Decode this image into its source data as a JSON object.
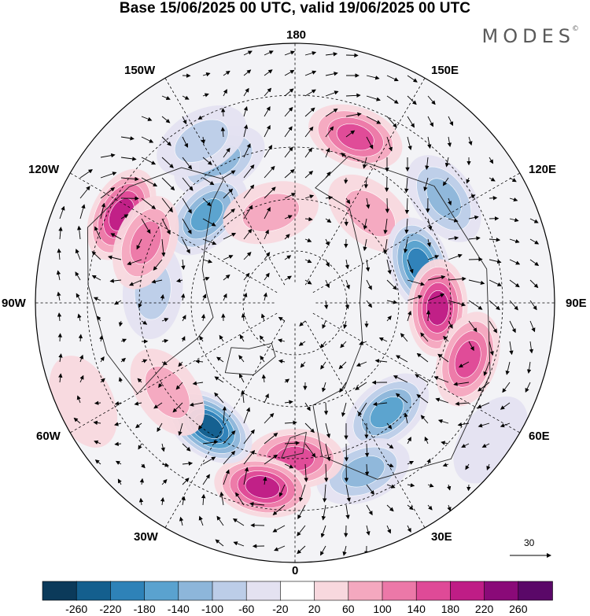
{
  "title": "Base 15/06/2025 00 UTC, valid 19/06/2025 00 UTC",
  "logo": "MODES",
  "logo_mark": "©",
  "longitude_labels": {
    "top": "180",
    "upper_left": "150W",
    "upper_right": "150E",
    "mid_upper_left": "120W",
    "mid_upper_right": "120E",
    "left": "90W",
    "right": "90E",
    "mid_lower_left": "60W",
    "mid_lower_right": "60E",
    "lower_left": "30W",
    "lower_right": "30E",
    "bottom": "0"
  },
  "reference_vector": "30",
  "colorbar": {
    "labels": [
      "-260",
      "-220",
      "-180",
      "-140",
      "-100",
      "-60",
      "-20",
      "20",
      "60",
      "100",
      "140",
      "180",
      "220",
      "260"
    ],
    "colors": [
      "#0b3a5a",
      "#145f8e",
      "#2e82b8",
      "#5aa2cf",
      "#8db6da",
      "#bccde8",
      "#e4e2f1",
      "#ffffff",
      "#f8d8de",
      "#f4a8bf",
      "#ec78a8",
      "#df4a97",
      "#bf1d86",
      "#8a0a78",
      "#5a0868"
    ]
  },
  "anomalies": [
    {
      "lon": -152,
      "r": 0.62,
      "v": -100
    },
    {
      "lon": -150,
      "r": 0.72,
      "v": -60
    },
    {
      "lon": -135,
      "r": 0.48,
      "v": -140
    },
    {
      "lon": -165,
      "r": 0.36,
      "v": 80
    },
    {
      "lon": 160,
      "r": 0.68,
      "v": 150
    },
    {
      "lon": 140,
      "r": 0.45,
      "v": 60
    },
    {
      "lon": 125,
      "r": 0.7,
      "v": -100
    },
    {
      "lon": 107,
      "r": 0.5,
      "v": -200
    },
    {
      "lon": 88,
      "r": 0.55,
      "v": 190
    },
    {
      "lon": 72,
      "r": 0.7,
      "v": 140
    },
    {
      "lon": 40,
      "r": 0.55,
      "v": -170
    },
    {
      "lon": 22,
      "r": 0.7,
      "v": -100
    },
    {
      "lon": 0,
      "r": 0.6,
      "v": 140
    },
    {
      "lon": -10,
      "r": 0.72,
      "v": 190
    },
    {
      "lon": -35,
      "r": 0.58,
      "v": -230
    },
    {
      "lon": -55,
      "r": 0.6,
      "v": 60
    },
    {
      "lon": -95,
      "r": 0.55,
      "v": -90
    },
    {
      "lon": -117,
      "r": 0.75,
      "v": 200
    },
    {
      "lon": -112,
      "r": 0.62,
      "v": 120
    },
    {
      "lon": 55,
      "r": 0.92,
      "v": -40
    },
    {
      "lon": -65,
      "r": 0.9,
      "v": 40
    }
  ]
}
